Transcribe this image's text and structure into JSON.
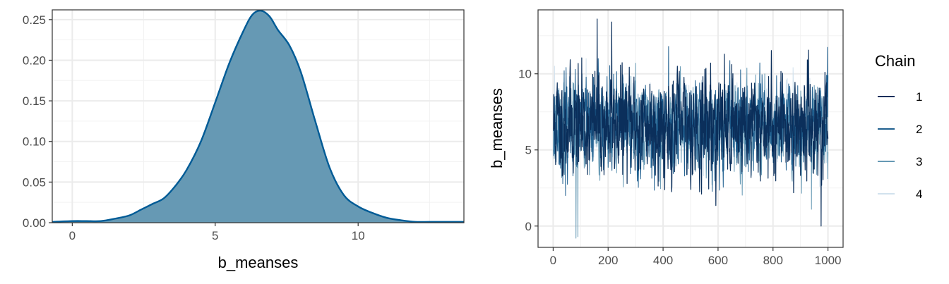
{
  "chart_data": [
    {
      "type": "area",
      "title": "",
      "xlabel": "b_meanses",
      "ylabel": "",
      "xlim": [
        -0.7,
        13.7
      ],
      "ylim": [
        0,
        0.262
      ],
      "x_ticks": [
        "0",
        "5",
        "10"
      ],
      "y_ticks": [
        "0.00",
        "0.05",
        "0.10",
        "0.15",
        "0.20",
        "0.25"
      ],
      "grid": true,
      "colors": {
        "fill": "#6699b4",
        "line": "#005b96"
      },
      "x": [
        -0.7,
        0,
        0.5,
        1.0,
        1.5,
        2.0,
        2.4,
        2.8,
        3.2,
        3.6,
        4.0,
        4.5,
        5.0,
        5.5,
        6.0,
        6.3,
        6.6,
        6.9,
        7.2,
        7.6,
        8.0,
        8.5,
        9.0,
        9.5,
        10.0,
        10.5,
        11.0,
        11.5,
        12.0,
        12.5,
        13.0,
        13.7
      ],
      "values": [
        0.001,
        0.002,
        0.002,
        0.002,
        0.005,
        0.009,
        0.016,
        0.023,
        0.03,
        0.045,
        0.065,
        0.1,
        0.148,
        0.197,
        0.237,
        0.256,
        0.261,
        0.254,
        0.237,
        0.218,
        0.185,
        0.125,
        0.068,
        0.034,
        0.02,
        0.012,
        0.006,
        0.003,
        0.001,
        0.001,
        0.001,
        0.001
      ]
    },
    {
      "type": "line",
      "title": "",
      "xlabel": "",
      "ylabel": "b_meanses",
      "xlim": [
        -55,
        1055
      ],
      "ylim": [
        -1.4,
        14.2
      ],
      "x_ticks": [
        "0",
        "200",
        "400",
        "600",
        "800",
        "1000"
      ],
      "y_ticks": [
        "0",
        "5",
        "10"
      ],
      "grid": true,
      "legend_position": "right",
      "legend_title": "Chain",
      "series": [
        {
          "name": "1",
          "color": "#0b2f5b",
          "width": 1.2,
          "seed": 11,
          "mean": 6.7,
          "sd": 1.7,
          "spikes": [
            [
              160,
              13.6
            ],
            [
              213,
              13.4
            ],
            [
              975,
              0.0
            ],
            [
              540,
              2.1
            ]
          ],
          "n": 1000
        },
        {
          "name": "2",
          "color": "#1f5f8f",
          "width": 1.0,
          "seed": 23,
          "mean": 6.6,
          "sd": 1.5,
          "spikes": [
            [
              45,
              2.0
            ],
            [
              1000,
              9.9
            ],
            [
              420,
              11.8
            ]
          ],
          "n": 1000
        },
        {
          "name": "3",
          "color": "#6699b4",
          "width": 1.0,
          "seed": 37,
          "mean": 6.5,
          "sd": 1.4,
          "spikes": [
            [
              83,
              -0.8
            ],
            [
              90,
              -0.7
            ],
            [
              940,
              1.1
            ],
            [
              300,
              10.7
            ]
          ],
          "n": 1000
        },
        {
          "name": "4",
          "color": "#d2e2ee",
          "width": 1.0,
          "seed": 51,
          "mean": 6.7,
          "sd": 1.1,
          "spikes": [
            [
              5,
              10.5
            ],
            [
              970,
              2.6
            ],
            [
              120,
              11.0
            ]
          ],
          "n": 1000
        }
      ]
    }
  ]
}
